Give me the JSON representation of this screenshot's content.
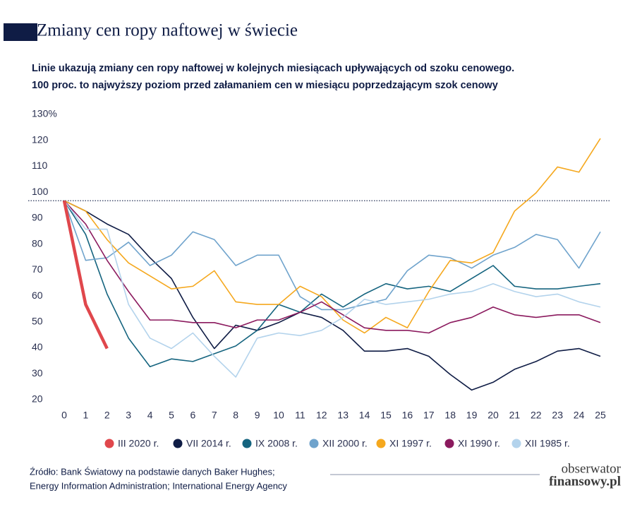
{
  "chart_data": {
    "type": "line",
    "title": "Zmiany cen ropy naftowej w świecie",
    "subtitle": [
      "Linie ukazują zmiany cen ropy naftowej w kolejnych miesiącach upływających od szoku cenowego.",
      "100 proc. to najwyższy poziom przed załamaniem cen w miesiącu poprzedzającym szok cenowy"
    ],
    "x": [
      0,
      1,
      2,
      3,
      4,
      5,
      6,
      7,
      8,
      9,
      10,
      11,
      12,
      13,
      14,
      15,
      16,
      17,
      18,
      19,
      20,
      21,
      22,
      23,
      24,
      25
    ],
    "xlim": [
      0,
      25
    ],
    "ylim": [
      20,
      130
    ],
    "yticks": [
      20,
      30,
      40,
      50,
      60,
      70,
      80,
      90,
      100,
      110,
      120,
      {
        "value": 130,
        "label": "130%"
      }
    ],
    "reference_line": 100,
    "grid": false,
    "legend": "bottom",
    "series": [
      {
        "name": "III 2020 r.",
        "color": "#e0474c",
        "values": [
          100,
          60,
          43,
          null,
          null,
          null,
          null,
          null,
          null,
          null,
          null,
          null,
          null,
          null,
          null,
          null,
          null,
          null,
          null,
          null,
          null,
          null,
          null,
          null,
          null,
          null
        ]
      },
      {
        "name": "VII 2014 r.",
        "color": "#0f1c45",
        "values": [
          100,
          96,
          91,
          87,
          78,
          70,
          55,
          43,
          52,
          50,
          53,
          57,
          55,
          50,
          42,
          42,
          43,
          40,
          33,
          27,
          30,
          35,
          38,
          42,
          43,
          40
        ]
      },
      {
        "name": "IX 2008 r.",
        "color": "#15647f",
        "values": [
          100,
          87,
          64,
          47,
          36,
          39,
          38,
          41,
          44,
          50,
          60,
          57,
          64,
          59,
          64,
          68,
          66,
          67,
          65,
          70,
          75,
          67,
          66,
          66,
          67,
          68
        ]
      },
      {
        "name": "XII 2000 r.",
        "color": "#6fa3cc",
        "values": [
          100,
          77,
          78,
          84,
          75,
          79,
          88,
          85,
          75,
          79,
          79,
          63,
          58,
          58,
          60,
          62,
          73,
          79,
          78,
          74,
          79,
          82,
          87,
          85,
          74,
          88
        ]
      },
      {
        "name": "XI 1997 r.",
        "color": "#f5a81e",
        "values": [
          100,
          96,
          85,
          76,
          71,
          66,
          67,
          73,
          61,
          60,
          60,
          67,
          63,
          54,
          49,
          55,
          51,
          65,
          77,
          76,
          80,
          96,
          103,
          113,
          111,
          124
        ]
      },
      {
        "name": "XI 1990 r.",
        "color": "#8b1a5e",
        "values": [
          100,
          91,
          77,
          65,
          54,
          54,
          53,
          53,
          51,
          54,
          54,
          57,
          61,
          56,
          51,
          50,
          50,
          49,
          53,
          55,
          59,
          56,
          55,
          56,
          56,
          53
        ]
      },
      {
        "name": "XII 1985 r.",
        "color": "#b3d3ec",
        "values": [
          100,
          89,
          89,
          60,
          47,
          43,
          49,
          40,
          32,
          47,
          49,
          48,
          50,
          55,
          62,
          60,
          61,
          62,
          64,
          65,
          68,
          65,
          63,
          64,
          61,
          59
        ]
      }
    ],
    "source": [
      "Źródło: Bank Światowy na podstawie danych Baker Hughes;",
      "Energy Information Administration; International Energy Agency"
    ],
    "logo": [
      "obserwator",
      "finansowy.pl"
    ]
  }
}
